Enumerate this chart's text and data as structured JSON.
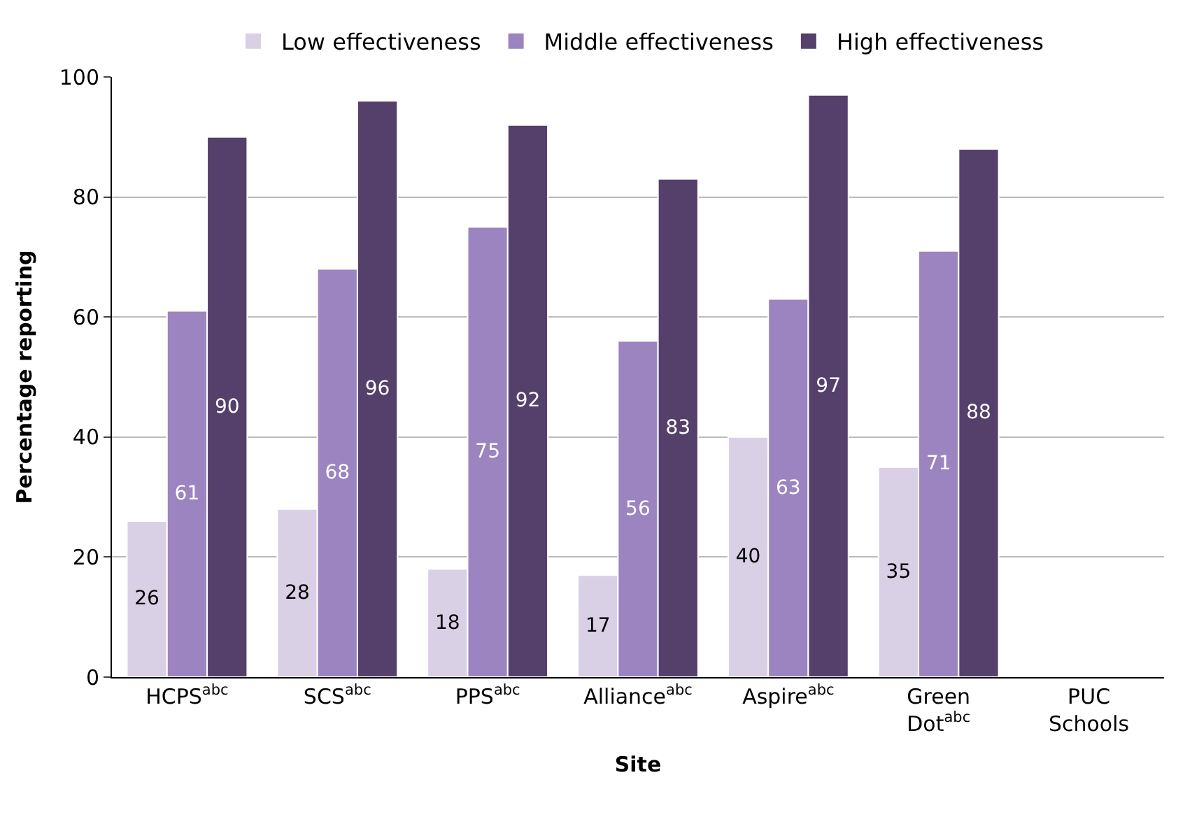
{
  "chart_data": {
    "type": "bar",
    "xlabel": "Site",
    "ylabel": "Percentage reporting",
    "categories": [
      "HCPS$^{abc}$",
      "SCS$^{abc}$",
      "PPS$^{abc}$",
      "Alliance$^{abc}$",
      "Aspire$^{abc}$",
      "Green Dot$^{abc}$",
      "PUC Schools"
    ],
    "series": [
      {
        "name": "Low effectiveness",
        "color": "#d9d0e6",
        "values": [
          26,
          28,
          18,
          17,
          40,
          35,
          null
        ]
      },
      {
        "name": "Middle effectiveness",
        "color": "#9b84c0",
        "values": [
          61,
          68,
          75,
          56,
          63,
          71,
          null
        ]
      },
      {
        "name": "High effectiveness",
        "color": "#553f6b",
        "values": [
          90,
          96,
          92,
          83,
          97,
          88,
          null
        ]
      }
    ],
    "ylim": [
      0,
      100
    ],
    "yticks": [
      0,
      20,
      40,
      60,
      80,
      100
    ],
    "grid": "y",
    "legend": "top",
    "data_labels": true
  }
}
